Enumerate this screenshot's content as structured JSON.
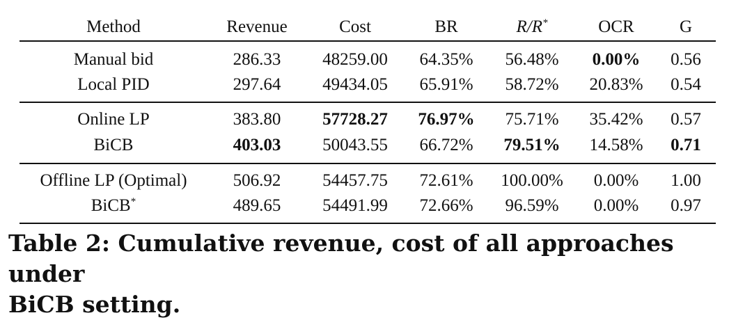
{
  "table": {
    "columns": [
      {
        "label": "Method"
      },
      {
        "label": "Revenue"
      },
      {
        "label": "Cost"
      },
      {
        "label": "BR"
      },
      {
        "label": "R/R",
        "sup": "*",
        "italic": true
      },
      {
        "label": "OCR"
      },
      {
        "label": "G"
      }
    ],
    "groups": [
      [
        {
          "cells": [
            {
              "text": "Manual bid"
            },
            {
              "text": "286.33"
            },
            {
              "text": "48259.00"
            },
            {
              "text": "64.35%"
            },
            {
              "text": "56.48%"
            },
            {
              "text": "0.00%",
              "bold": true
            },
            {
              "text": "0.56"
            }
          ]
        },
        {
          "cells": [
            {
              "text": "Local PID"
            },
            {
              "text": "297.64"
            },
            {
              "text": "49434.05"
            },
            {
              "text": "65.91%"
            },
            {
              "text": "58.72%"
            },
            {
              "text": "20.83%"
            },
            {
              "text": "0.54"
            }
          ]
        }
      ],
      [
        {
          "cells": [
            {
              "text": "Online LP"
            },
            {
              "text": "383.80"
            },
            {
              "text": "57728.27",
              "bold": true
            },
            {
              "text": "76.97%",
              "bold": true
            },
            {
              "text": "75.71%"
            },
            {
              "text": "35.42%"
            },
            {
              "text": "0.57"
            }
          ]
        },
        {
          "cells": [
            {
              "text": "BiCB"
            },
            {
              "text": "403.03",
              "bold": true
            },
            {
              "text": "50043.55"
            },
            {
              "text": "66.72%"
            },
            {
              "text": "79.51%",
              "bold": true
            },
            {
              "text": "14.58%"
            },
            {
              "text": "0.71",
              "bold": true
            }
          ]
        }
      ],
      [
        {
          "cells": [
            {
              "text": "Offline LP (Optimal)"
            },
            {
              "text": "506.92"
            },
            {
              "text": "54457.75"
            },
            {
              "text": "72.61%"
            },
            {
              "text": "100.00%"
            },
            {
              "text": "0.00%"
            },
            {
              "text": "1.00"
            }
          ]
        },
        {
          "cells": [
            {
              "text": "BiCB",
              "sup": "*"
            },
            {
              "text": "489.65"
            },
            {
              "text": "54491.99"
            },
            {
              "text": "72.66%"
            },
            {
              "text": "96.59%"
            },
            {
              "text": "0.00%"
            },
            {
              "text": "0.97"
            }
          ]
        }
      ]
    ]
  },
  "caption": {
    "line1": "Table 2: Cumulative revenue, cost of all approaches under",
    "line2": "BiCB setting."
  }
}
